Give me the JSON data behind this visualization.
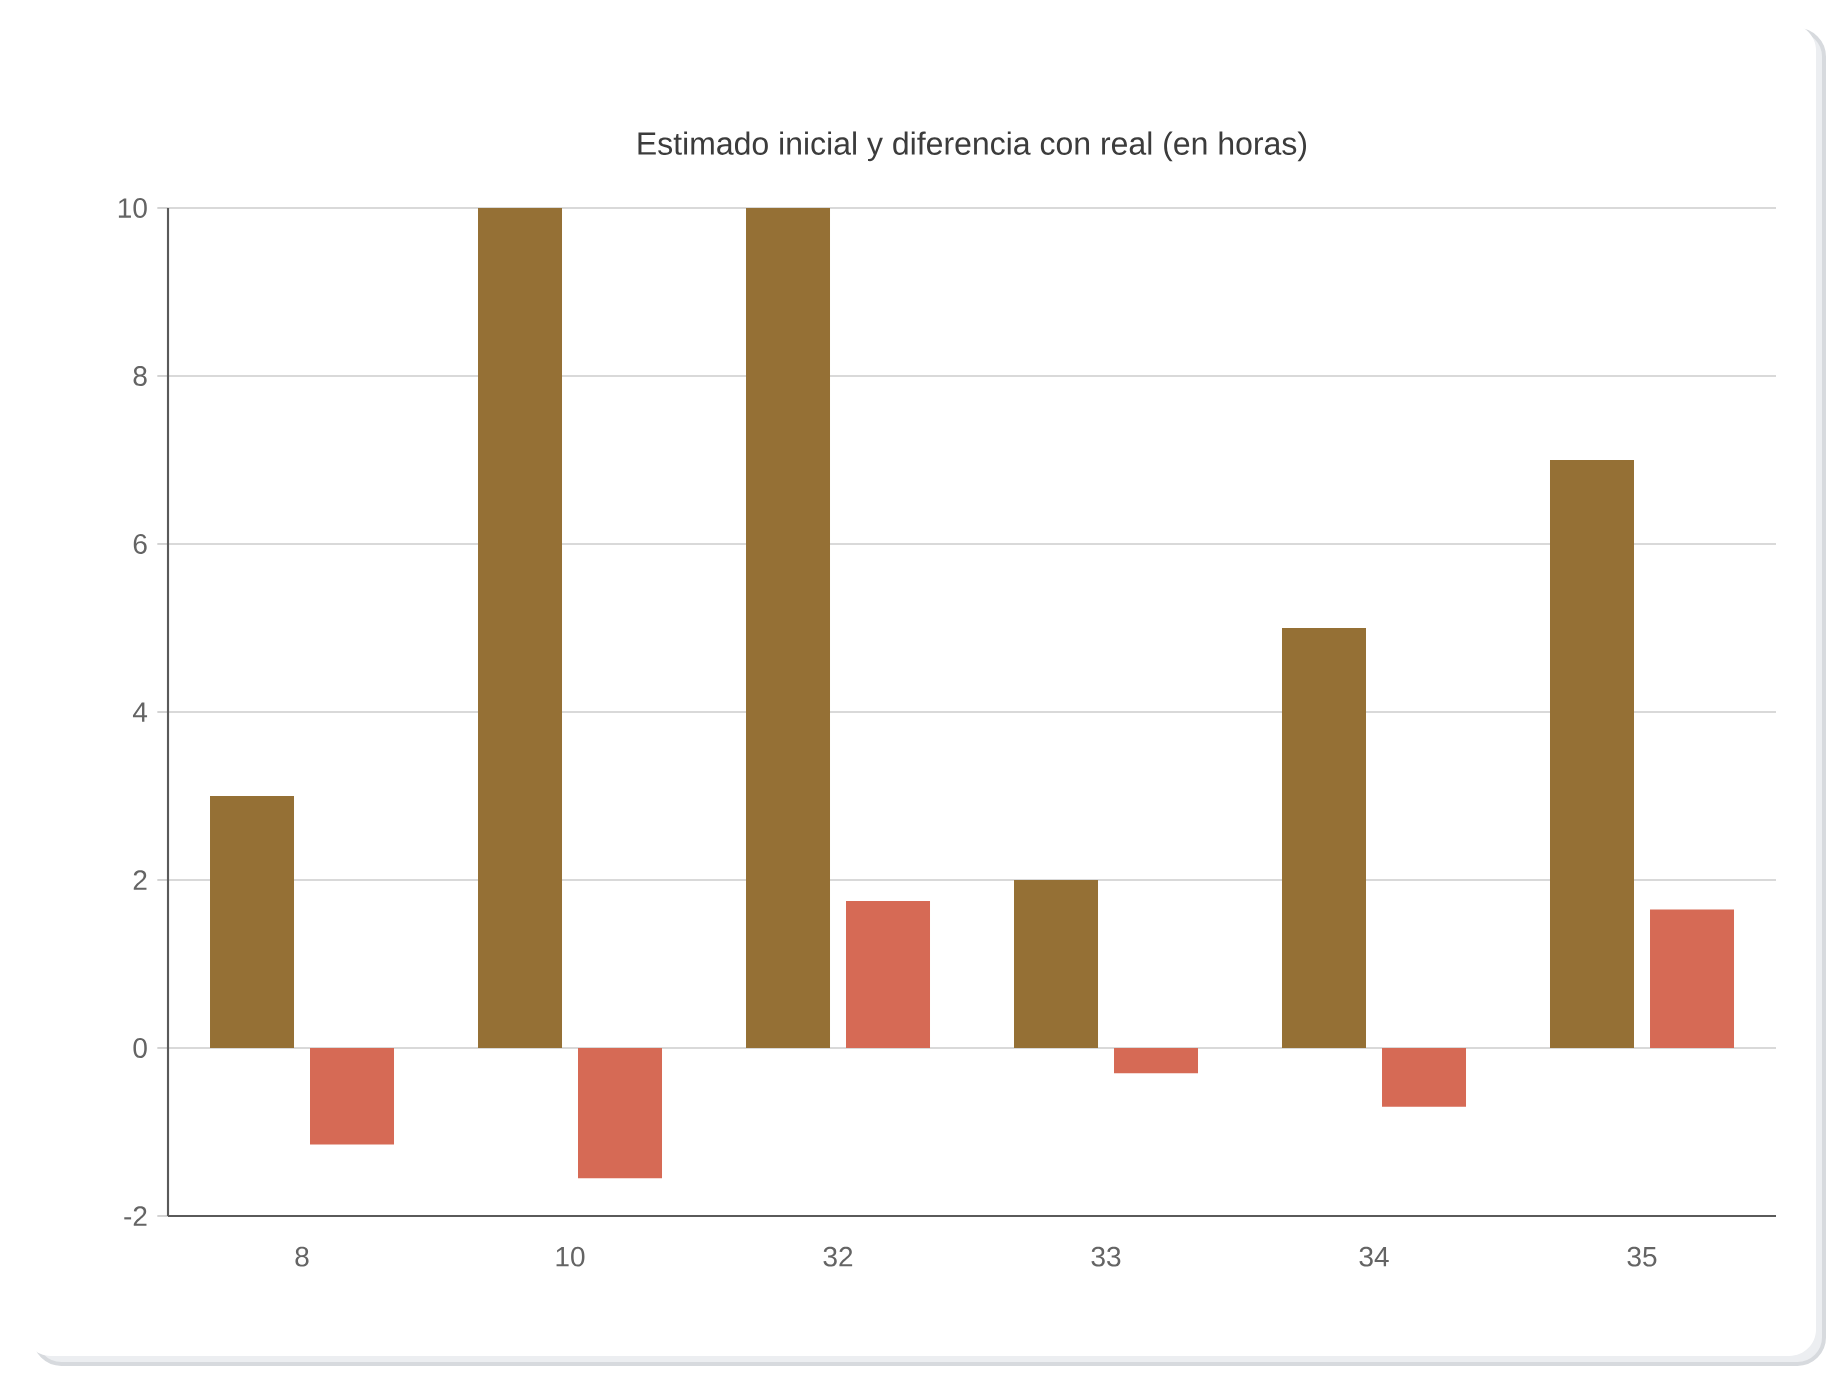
{
  "chart_data": {
    "type": "bar",
    "title": "Estimado inicial y diferencia con real (en horas)",
    "categories": [
      "8",
      "10",
      "32",
      "33",
      "34",
      "35"
    ],
    "series": [
      {
        "color": "#957035",
        "values": [
          3,
          10,
          10,
          2,
          5,
          7
        ]
      },
      {
        "color": "#d66a55",
        "values": [
          -1.15,
          -1.55,
          1.75,
          -0.3,
          -0.7,
          1.65
        ]
      }
    ],
    "ylim": [
      -2,
      10
    ],
    "yticks": [
      -2,
      0,
      2,
      4,
      6,
      8,
      10
    ],
    "grid": "y"
  }
}
